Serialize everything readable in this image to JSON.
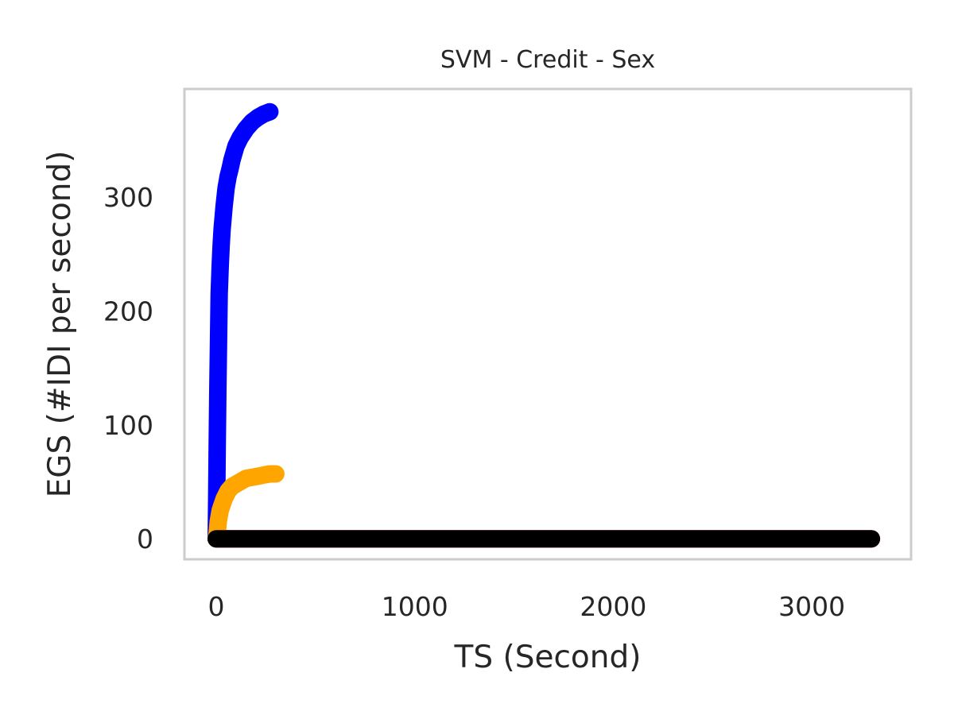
{
  "chart_data": {
    "type": "line",
    "title": "SVM - Credit - Sex",
    "xlabel": "TS (Second)",
    "ylabel": "EGS (#IDI  per second)",
    "xlim": [
      -160,
      3500
    ],
    "ylim": [
      -18,
      395
    ],
    "xticks": [
      0,
      1000,
      2000,
      3000
    ],
    "yticks": [
      0,
      100,
      200,
      300
    ],
    "grid": false,
    "colors": {
      "frame": "#cccccc",
      "text": "#262626"
    },
    "series": [
      {
        "color": "#ff0000",
        "x": [
          0,
          100,
          500,
          1000,
          1500,
          2000,
          2500,
          3000,
          3300
        ],
        "y": [
          0,
          0,
          0,
          0,
          0,
          0,
          0,
          0,
          0
        ]
      },
      {
        "color": "#0000ff",
        "x": [
          0,
          2,
          5,
          8,
          12,
          15,
          20,
          25,
          30,
          40,
          50,
          60,
          70,
          80,
          100,
          120,
          150,
          180,
          210,
          240,
          270
        ],
        "y": [
          0,
          30,
          80,
          130,
          180,
          215,
          240,
          258,
          272,
          292,
          308,
          318,
          325,
          333,
          345,
          352,
          360,
          366,
          370,
          373,
          375
        ]
      },
      {
        "color": "#ffa500",
        "x": [
          0,
          5,
          10,
          20,
          40,
          60,
          80,
          100,
          120,
          150,
          180,
          210,
          240,
          270,
          300
        ],
        "y": [
          0,
          5,
          15,
          25,
          35,
          42,
          46,
          48,
          50,
          53,
          54,
          55,
          56,
          57,
          57
        ]
      },
      {
        "color": "#000000",
        "x": [
          0,
          50,
          500,
          1000,
          1500,
          2000,
          2500,
          3000,
          3300
        ],
        "y": [
          0,
          0,
          0,
          0,
          0,
          0,
          0,
          0,
          0
        ]
      }
    ]
  }
}
